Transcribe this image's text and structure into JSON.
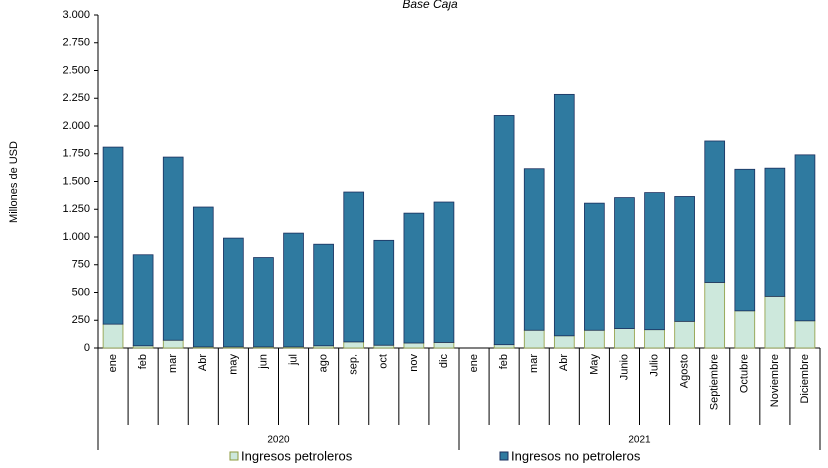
{
  "chart_data": {
    "type": "stacked_bar",
    "title": "Base Caja",
    "y_label": "Millones de USD",
    "categories": [
      "ene",
      "feb",
      "mar",
      "Abr",
      "may",
      "jun",
      "jul",
      "ago",
      "sep.",
      "oct",
      "nov",
      "dic",
      "ene",
      "feb",
      "mar",
      "Abr",
      "May",
      "Junio",
      "Julio",
      "Agosto",
      "Septiembre",
      "Octubre",
      "Noviembre",
      "Diciembre"
    ],
    "group_labels": [
      "2020",
      "2021"
    ],
    "series": [
      {
        "name": "Ingresos petroleros",
        "color": "#cde8dc",
        "edge": "#8c9a3c",
        "values": [
          215,
          20,
          70,
          10,
          10,
          10,
          10,
          20,
          55,
          25,
          45,
          50,
          null,
          30,
          160,
          110,
          160,
          175,
          165,
          240,
          590,
          335,
          465,
          245
        ]
      },
      {
        "name": "Ingresos no petroleros",
        "color": "#2f7aa0",
        "edge": "#1b2f5e",
        "values": [
          1595,
          820,
          1650,
          1260,
          980,
          805,
          1025,
          915,
          1350,
          945,
          1170,
          1265,
          null,
          2065,
          1455,
          2175,
          1145,
          1180,
          1235,
          1125,
          1275,
          1275,
          1155,
          1495
        ]
      }
    ],
    "ylim": [
      0,
      3000
    ],
    "yticks": [
      0,
      250,
      500,
      750,
      {
        "value": 1000,
        "label": "1.000"
      },
      {
        "value": 1250,
        "label": "1.250"
      },
      {
        "value": 1500,
        "label": "1.500"
      },
      {
        "value": 1750,
        "label": "1.750"
      },
      {
        "value": 2000,
        "label": "2.000"
      },
      {
        "value": 2250,
        "label": "2.250"
      },
      {
        "value": 2500,
        "label": "2.500"
      },
      {
        "value": 2750,
        "label": "2.750"
      },
      {
        "value": 3000,
        "label": "3.000"
      }
    ]
  }
}
